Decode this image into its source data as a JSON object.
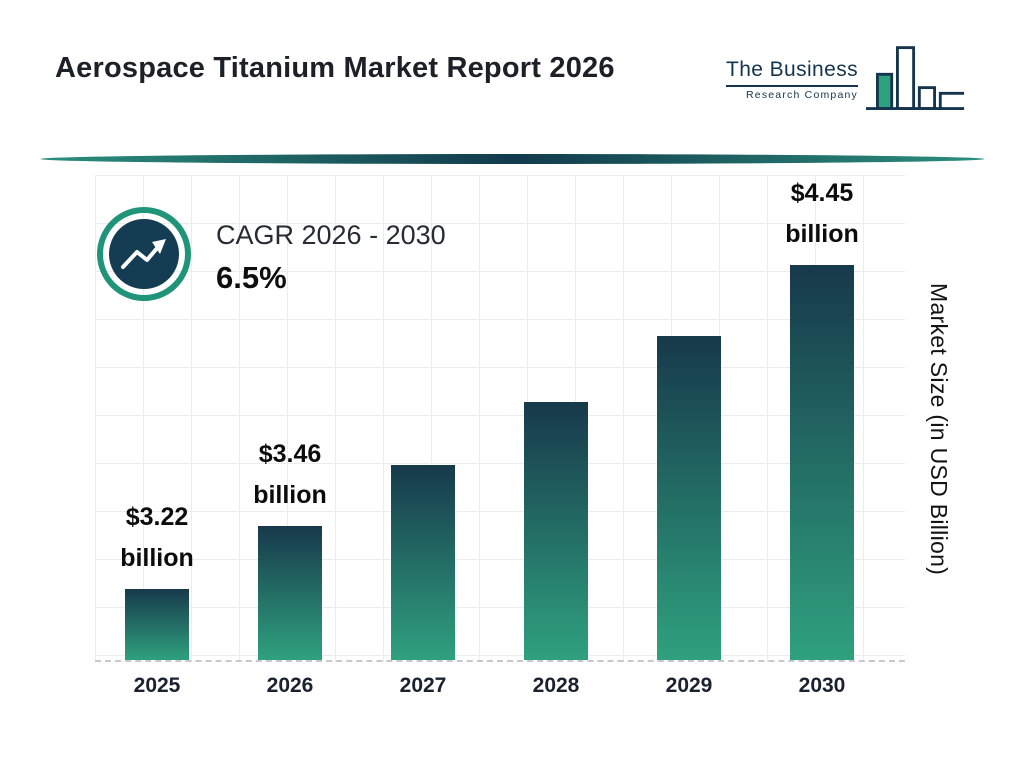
{
  "header": {
    "title": "Aerospace Titanium Market Report 2026",
    "logo": {
      "line1": "The Business",
      "line2": "Research Company"
    }
  },
  "cagr": {
    "label": "CAGR 2026 - 2030",
    "value": "6.5%"
  },
  "chart_data": {
    "type": "bar",
    "title": "Aerospace Titanium Market Report 2026",
    "categories": [
      "2025",
      "2026",
      "2027",
      "2028",
      "2029",
      "2030"
    ],
    "values": [
      3.22,
      3.46,
      3.69,
      3.93,
      4.18,
      4.45
    ],
    "data_labels": [
      {
        "amount": "$3.22",
        "unit": "billion"
      },
      {
        "amount": "$3.46",
        "unit": "billion"
      },
      null,
      null,
      null,
      {
        "amount": "$4.45",
        "unit": "billion"
      }
    ],
    "xlabel": "",
    "ylabel": "Market Size (in USD Billion)",
    "ylim": [
      2.95,
      4.8
    ],
    "grid": true,
    "legend": false,
    "baseline_style": "dashed",
    "bar_gradient": [
      "#17394b",
      "#2fa17e"
    ]
  },
  "colors": {
    "accent_teal": "#2fa17e",
    "dark_navy": "#15344d",
    "divider_center": "#123a4c"
  }
}
